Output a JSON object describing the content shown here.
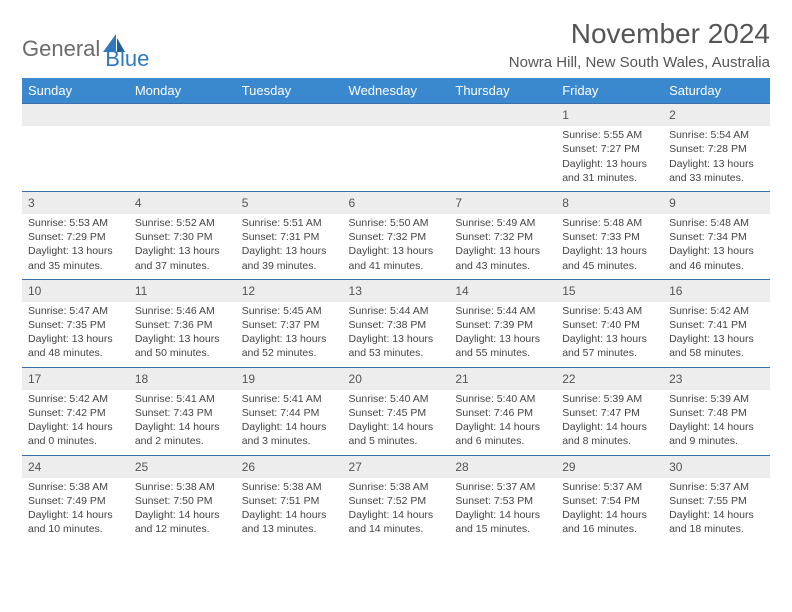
{
  "brand": {
    "part1": "General",
    "part2": "Blue"
  },
  "title": "November 2024",
  "subtitle": "Nowra Hill, New South Wales, Australia",
  "colors": {
    "header_bg": "#3a89cf",
    "header_fg": "#ffffff",
    "daynum_bg": "#ededed",
    "row_divider": "#3a6fa8",
    "logo_gray": "#6b6b6b",
    "logo_blue": "#2f79c2",
    "text": "#444444"
  },
  "weekdays": [
    "Sunday",
    "Monday",
    "Tuesday",
    "Wednesday",
    "Thursday",
    "Friday",
    "Saturday"
  ],
  "weeks": [
    [
      null,
      null,
      null,
      null,
      null,
      {
        "n": "1",
        "sr": "Sunrise: 5:55 AM",
        "ss": "Sunset: 7:27 PM",
        "d1": "Daylight: 13 hours",
        "d2": "and 31 minutes."
      },
      {
        "n": "2",
        "sr": "Sunrise: 5:54 AM",
        "ss": "Sunset: 7:28 PM",
        "d1": "Daylight: 13 hours",
        "d2": "and 33 minutes."
      }
    ],
    [
      {
        "n": "3",
        "sr": "Sunrise: 5:53 AM",
        "ss": "Sunset: 7:29 PM",
        "d1": "Daylight: 13 hours",
        "d2": "and 35 minutes."
      },
      {
        "n": "4",
        "sr": "Sunrise: 5:52 AM",
        "ss": "Sunset: 7:30 PM",
        "d1": "Daylight: 13 hours",
        "d2": "and 37 minutes."
      },
      {
        "n": "5",
        "sr": "Sunrise: 5:51 AM",
        "ss": "Sunset: 7:31 PM",
        "d1": "Daylight: 13 hours",
        "d2": "and 39 minutes."
      },
      {
        "n": "6",
        "sr": "Sunrise: 5:50 AM",
        "ss": "Sunset: 7:32 PM",
        "d1": "Daylight: 13 hours",
        "d2": "and 41 minutes."
      },
      {
        "n": "7",
        "sr": "Sunrise: 5:49 AM",
        "ss": "Sunset: 7:32 PM",
        "d1": "Daylight: 13 hours",
        "d2": "and 43 minutes."
      },
      {
        "n": "8",
        "sr": "Sunrise: 5:48 AM",
        "ss": "Sunset: 7:33 PM",
        "d1": "Daylight: 13 hours",
        "d2": "and 45 minutes."
      },
      {
        "n": "9",
        "sr": "Sunrise: 5:48 AM",
        "ss": "Sunset: 7:34 PM",
        "d1": "Daylight: 13 hours",
        "d2": "and 46 minutes."
      }
    ],
    [
      {
        "n": "10",
        "sr": "Sunrise: 5:47 AM",
        "ss": "Sunset: 7:35 PM",
        "d1": "Daylight: 13 hours",
        "d2": "and 48 minutes."
      },
      {
        "n": "11",
        "sr": "Sunrise: 5:46 AM",
        "ss": "Sunset: 7:36 PM",
        "d1": "Daylight: 13 hours",
        "d2": "and 50 minutes."
      },
      {
        "n": "12",
        "sr": "Sunrise: 5:45 AM",
        "ss": "Sunset: 7:37 PM",
        "d1": "Daylight: 13 hours",
        "d2": "and 52 minutes."
      },
      {
        "n": "13",
        "sr": "Sunrise: 5:44 AM",
        "ss": "Sunset: 7:38 PM",
        "d1": "Daylight: 13 hours",
        "d2": "and 53 minutes."
      },
      {
        "n": "14",
        "sr": "Sunrise: 5:44 AM",
        "ss": "Sunset: 7:39 PM",
        "d1": "Daylight: 13 hours",
        "d2": "and 55 minutes."
      },
      {
        "n": "15",
        "sr": "Sunrise: 5:43 AM",
        "ss": "Sunset: 7:40 PM",
        "d1": "Daylight: 13 hours",
        "d2": "and 57 minutes."
      },
      {
        "n": "16",
        "sr": "Sunrise: 5:42 AM",
        "ss": "Sunset: 7:41 PM",
        "d1": "Daylight: 13 hours",
        "d2": "and 58 minutes."
      }
    ],
    [
      {
        "n": "17",
        "sr": "Sunrise: 5:42 AM",
        "ss": "Sunset: 7:42 PM",
        "d1": "Daylight: 14 hours",
        "d2": "and 0 minutes."
      },
      {
        "n": "18",
        "sr": "Sunrise: 5:41 AM",
        "ss": "Sunset: 7:43 PM",
        "d1": "Daylight: 14 hours",
        "d2": "and 2 minutes."
      },
      {
        "n": "19",
        "sr": "Sunrise: 5:41 AM",
        "ss": "Sunset: 7:44 PM",
        "d1": "Daylight: 14 hours",
        "d2": "and 3 minutes."
      },
      {
        "n": "20",
        "sr": "Sunrise: 5:40 AM",
        "ss": "Sunset: 7:45 PM",
        "d1": "Daylight: 14 hours",
        "d2": "and 5 minutes."
      },
      {
        "n": "21",
        "sr": "Sunrise: 5:40 AM",
        "ss": "Sunset: 7:46 PM",
        "d1": "Daylight: 14 hours",
        "d2": "and 6 minutes."
      },
      {
        "n": "22",
        "sr": "Sunrise: 5:39 AM",
        "ss": "Sunset: 7:47 PM",
        "d1": "Daylight: 14 hours",
        "d2": "and 8 minutes."
      },
      {
        "n": "23",
        "sr": "Sunrise: 5:39 AM",
        "ss": "Sunset: 7:48 PM",
        "d1": "Daylight: 14 hours",
        "d2": "and 9 minutes."
      }
    ],
    [
      {
        "n": "24",
        "sr": "Sunrise: 5:38 AM",
        "ss": "Sunset: 7:49 PM",
        "d1": "Daylight: 14 hours",
        "d2": "and 10 minutes."
      },
      {
        "n": "25",
        "sr": "Sunrise: 5:38 AM",
        "ss": "Sunset: 7:50 PM",
        "d1": "Daylight: 14 hours",
        "d2": "and 12 minutes."
      },
      {
        "n": "26",
        "sr": "Sunrise: 5:38 AM",
        "ss": "Sunset: 7:51 PM",
        "d1": "Daylight: 14 hours",
        "d2": "and 13 minutes."
      },
      {
        "n": "27",
        "sr": "Sunrise: 5:38 AM",
        "ss": "Sunset: 7:52 PM",
        "d1": "Daylight: 14 hours",
        "d2": "and 14 minutes."
      },
      {
        "n": "28",
        "sr": "Sunrise: 5:37 AM",
        "ss": "Sunset: 7:53 PM",
        "d1": "Daylight: 14 hours",
        "d2": "and 15 minutes."
      },
      {
        "n": "29",
        "sr": "Sunrise: 5:37 AM",
        "ss": "Sunset: 7:54 PM",
        "d1": "Daylight: 14 hours",
        "d2": "and 16 minutes."
      },
      {
        "n": "30",
        "sr": "Sunrise: 5:37 AM",
        "ss": "Sunset: 7:55 PM",
        "d1": "Daylight: 14 hours",
        "d2": "and 18 minutes."
      }
    ]
  ]
}
